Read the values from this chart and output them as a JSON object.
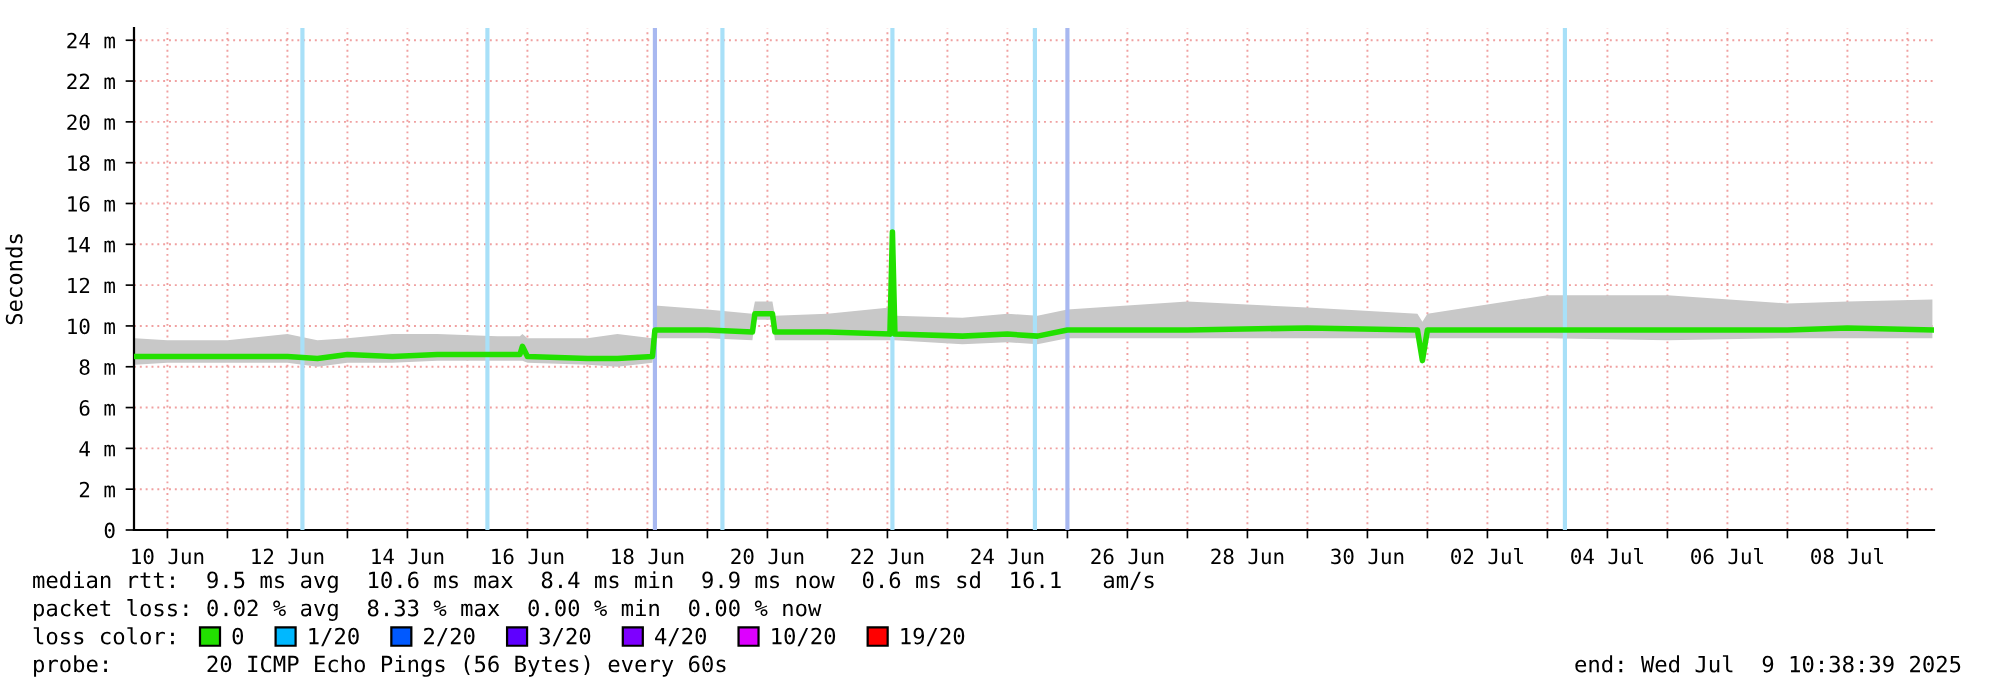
{
  "chart_data": {
    "type": "line",
    "ylabel": "Seconds",
    "x": [
      "2025-06-09T11:00",
      "2025-06-10T00:00",
      "2025-06-11T00:00",
      "2025-06-12T00:00",
      "2025-06-12T12:00",
      "2025-06-13T00:00",
      "2025-06-13T18:00",
      "2025-06-14T12:00",
      "2025-06-15T12:00",
      "2025-06-15T21:00",
      "2025-06-15T22:00",
      "2025-06-16T00:00",
      "2025-06-17T00:00",
      "2025-06-17T12:00",
      "2025-06-18T02:00",
      "2025-06-18T03:00",
      "2025-06-19T00:00",
      "2025-06-19T18:00",
      "2025-06-19T19:00",
      "2025-06-20T02:00",
      "2025-06-20T03:00",
      "2025-06-21T00:00",
      "2025-06-22T01:00",
      "2025-06-22T02:00",
      "2025-06-22T03:00",
      "2025-06-23T06:00",
      "2025-06-24T00:00",
      "2025-06-24T12:00",
      "2025-06-25T00:00",
      "2025-06-27T00:00",
      "2025-06-29T00:00",
      "2025-06-30T20:00",
      "2025-06-30T22:00",
      "2025-07-01T00:00",
      "2025-07-03T00:00",
      "2025-07-05T00:00",
      "2025-07-07T00:00",
      "2025-07-08T00:00",
      "2025-07-09T10:00"
    ],
    "series": [
      {
        "name": "0",
        "color": "#22e000",
        "values": [
          8.5,
          8.5,
          8.5,
          8.5,
          8.4,
          8.6,
          8.5,
          8.6,
          8.6,
          8.6,
          9.0,
          8.5,
          8.4,
          8.4,
          8.5,
          9.8,
          9.8,
          9.7,
          10.6,
          10.6,
          9.7,
          9.7,
          9.6,
          14.6,
          9.6,
          9.5,
          9.6,
          9.5,
          9.8,
          9.8,
          9.9,
          9.8,
          8.3,
          9.8,
          9.8,
          9.8,
          9.8,
          9.9,
          9.8
        ],
        "lower": [
          8.1,
          8.2,
          8.2,
          8.2,
          8.0,
          8.2,
          8.2,
          8.3,
          8.3,
          8.3,
          8.3,
          8.2,
          8.1,
          8.0,
          8.2,
          9.4,
          9.4,
          9.3,
          10.3,
          10.3,
          9.3,
          9.3,
          9.3,
          9.3,
          9.3,
          9.1,
          9.2,
          9.1,
          9.4,
          9.4,
          9.4,
          9.4,
          8.2,
          9.4,
          9.4,
          9.3,
          9.4,
          9.4,
          9.4
        ],
        "upper": [
          9.4,
          9.3,
          9.3,
          9.6,
          9.3,
          9.4,
          9.6,
          9.6,
          9.5,
          9.5,
          9.6,
          9.4,
          9.4,
          9.6,
          9.4,
          11.0,
          10.8,
          10.6,
          11.2,
          11.2,
          10.5,
          10.6,
          10.9,
          10.5,
          10.5,
          10.4,
          10.6,
          10.5,
          10.8,
          11.2,
          10.9,
          10.6,
          10.2,
          10.6,
          11.5,
          11.5,
          11.1,
          11.2,
          11.3
        ]
      },
      {
        "name": "1/20",
        "color": "#00b8ff",
        "values": [
          null,
          null,
          null,
          null,
          null,
          null,
          null,
          null,
          null,
          null,
          null,
          null,
          null,
          null,
          null,
          null,
          null,
          null,
          null,
          null,
          null,
          null,
          null,
          null,
          null,
          null,
          null,
          null,
          null,
          null,
          null,
          null,
          null,
          null,
          null,
          null,
          null,
          null,
          null
        ]
      },
      {
        "name": "2/20",
        "color": "#0059ff",
        "values": [
          null,
          null,
          null,
          null,
          null,
          null,
          null,
          null,
          null,
          null,
          null,
          null,
          null,
          null,
          null,
          null,
          null,
          null,
          null,
          null,
          null,
          null,
          null,
          null,
          null,
          null,
          null,
          null,
          null,
          null,
          null,
          null,
          null,
          null,
          null,
          null,
          null,
          null,
          null
        ]
      },
      {
        "name": "3/20",
        "color": "#5e00ff",
        "values": [
          null,
          null,
          null,
          null,
          null,
          null,
          null,
          null,
          null,
          null,
          null,
          null,
          null,
          null,
          null,
          null,
          null,
          null,
          null,
          null,
          null,
          null,
          null,
          null,
          null,
          null,
          null,
          null,
          null,
          null,
          null,
          null,
          null,
          null,
          null,
          null,
          null,
          null,
          null
        ]
      },
      {
        "name": "4/20",
        "color": "#7e00ff",
        "values": [
          null,
          null,
          null,
          null,
          null,
          null,
          null,
          null,
          null,
          null,
          null,
          null,
          null,
          null,
          null,
          null,
          null,
          null,
          null,
          null,
          null,
          null,
          null,
          null,
          null,
          null,
          null,
          null,
          null,
          null,
          null,
          null,
          null,
          null,
          null,
          null,
          null,
          null,
          null
        ]
      },
      {
        "name": "10/20",
        "color": "#dd00ff",
        "values": [
          null,
          null,
          null,
          null,
          null,
          null,
          null,
          null,
          null,
          null,
          null,
          null,
          null,
          null,
          null,
          null,
          null,
          null,
          null,
          null,
          null,
          null,
          null,
          null,
          null,
          null,
          null,
          null,
          null,
          null,
          null,
          null,
          null,
          null,
          null,
          null,
          null,
          null,
          null
        ]
      },
      {
        "name": "19/20",
        "color": "#ff0000",
        "values": [
          null,
          null,
          null,
          null,
          null,
          null,
          null,
          null,
          null,
          null,
          null,
          null,
          null,
          null,
          null,
          null,
          null,
          null,
          null,
          null,
          null,
          null,
          null,
          null,
          null,
          null,
          null,
          null,
          null,
          null,
          null,
          null,
          null,
          null,
          null,
          null,
          null,
          null,
          null
        ]
      }
    ],
    "legend": "bottom",
    "legend_title": "loss color:",
    "ref_lines": [
      {
        "axis": "x",
        "value": "2025-06-12T06:00",
        "color": "#a8e0f8"
      },
      {
        "axis": "x",
        "value": "2025-06-15T08:00",
        "color": "#a8e0f8"
      },
      {
        "axis": "x",
        "value": "2025-06-18T03:00",
        "color": "#a8b8f0"
      },
      {
        "axis": "x",
        "value": "2025-06-19T06:00",
        "color": "#a8e0f8"
      },
      {
        "axis": "x",
        "value": "2025-06-22T02:00",
        "color": "#a8e0f8"
      },
      {
        "axis": "x",
        "value": "2025-06-24T11:00",
        "color": "#a8e0f8"
      },
      {
        "axis": "x",
        "value": "2025-06-25T00:00",
        "color": "#a8b8f0"
      },
      {
        "axis": "x",
        "value": "2025-07-03T07:00",
        "color": "#a8e0f8"
      }
    ],
    "xlim": [
      "2025-06-09T10:38",
      "2025-07-09T10:38"
    ],
    "xticks": [
      {
        "value": "2025-06-10",
        "label": "10 Jun"
      },
      {
        "value": "2025-06-11",
        "label": null
      },
      {
        "value": "2025-06-12",
        "label": "12 Jun"
      },
      {
        "value": "2025-06-13",
        "label": null
      },
      {
        "value": "2025-06-14",
        "label": "14 Jun"
      },
      {
        "value": "2025-06-15",
        "label": null
      },
      {
        "value": "2025-06-16",
        "label": "16 Jun"
      },
      {
        "value": "2025-06-17",
        "label": null
      },
      {
        "value": "2025-06-18",
        "label": "18 Jun"
      },
      {
        "value": "2025-06-19",
        "label": null
      },
      {
        "value": "2025-06-20",
        "label": "20 Jun"
      },
      {
        "value": "2025-06-21",
        "label": null
      },
      {
        "value": "2025-06-22",
        "label": "22 Jun"
      },
      {
        "value": "2025-06-23",
        "label": null
      },
      {
        "value": "2025-06-24",
        "label": "24 Jun"
      },
      {
        "value": "2025-06-25",
        "label": null
      },
      {
        "value": "2025-06-26",
        "label": "26 Jun"
      },
      {
        "value": "2025-06-27",
        "label": null
      },
      {
        "value": "2025-06-28",
        "label": "28 Jun"
      },
      {
        "value": "2025-06-29",
        "label": null
      },
      {
        "value": "2025-06-30",
        "label": "30 Jun"
      },
      {
        "value": "2025-07-01",
        "label": null
      },
      {
        "value": "2025-07-02",
        "label": "02 Jul"
      },
      {
        "value": "2025-07-03",
        "label": null
      },
      {
        "value": "2025-07-04",
        "label": "04 Jul"
      },
      {
        "value": "2025-07-05",
        "label": null
      },
      {
        "value": "2025-07-06",
        "label": "06 Jul"
      },
      {
        "value": "2025-07-07",
        "label": null
      },
      {
        "value": "2025-07-08",
        "label": "08 Jul"
      },
      {
        "value": "2025-07-09",
        "label": null
      }
    ],
    "ylim": [
      0,
      24.6
    ],
    "yticks": [
      0,
      {
        "value": 2,
        "label": "2 m"
      },
      {
        "value": 4,
        "label": "4 m"
      },
      {
        "value": 6,
        "label": "6 m"
      },
      {
        "value": 8,
        "label": "8 m"
      },
      {
        "value": 10,
        "label": "10 m"
      },
      {
        "value": 12,
        "label": "12 m"
      },
      {
        "value": 14,
        "label": "14 m"
      },
      {
        "value": 16,
        "label": "16 m"
      },
      {
        "value": 18,
        "label": "18 m"
      },
      {
        "value": 20,
        "label": "20 m"
      },
      {
        "value": 22,
        "label": "22 m"
      },
      {
        "value": 24,
        "label": "24 m"
      }
    ],
    "grid": true,
    "annotations": [
      "median rtt:  9.5 ms avg  10.6 ms max  8.4 ms min  9.9 ms now  0.6 ms sd  16.1   am/s",
      "packet loss: 0.02 % avg  8.33 % max  0.00 % min  0.00 % now",
      "probe:       20 ICMP Echo Pings (56 Bytes) every 60s",
      "end: Wed Jul  9 10:38:39 2025"
    ]
  }
}
